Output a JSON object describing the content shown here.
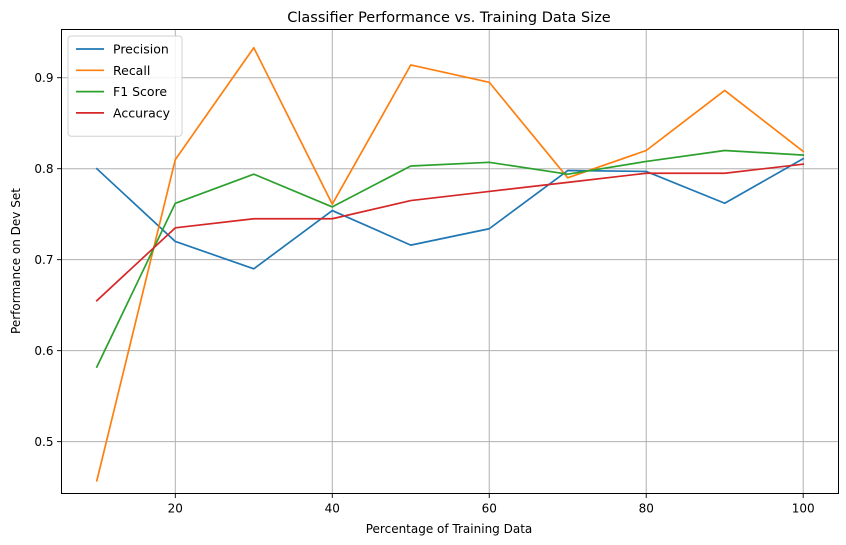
{
  "chart_data": {
    "type": "line",
    "title": "Classifier Performance vs. Training Data Size",
    "xlabel": "Percentage of Training Data",
    "ylabel": "Performance on Dev Set",
    "x": [
      10,
      20,
      30,
      40,
      50,
      60,
      70,
      80,
      90,
      100
    ],
    "xlim": [
      5.5,
      104.5
    ],
    "ylim": [
      0.443,
      0.953
    ],
    "xticks": [
      20,
      40,
      60,
      80,
      100
    ],
    "yticks": [
      0.5,
      0.6,
      0.7,
      0.8,
      0.9
    ],
    "xtick_labels": [
      "20",
      "40",
      "60",
      "80",
      "100"
    ],
    "ytick_labels": [
      "0.5",
      "0.6",
      "0.7",
      "0.8",
      "0.9"
    ],
    "grid": true,
    "legend_position": "top-left",
    "series": [
      {
        "name": "Precision",
        "color": "#1f77b4",
        "values": [
          0.8,
          0.72,
          0.69,
          0.754,
          0.716,
          0.734,
          0.798,
          0.797,
          0.762,
          0.811
        ]
      },
      {
        "name": "Recall",
        "color": "#ff7f0e",
        "values": [
          0.457,
          0.81,
          0.933,
          0.761,
          0.914,
          0.895,
          0.79,
          0.82,
          0.886,
          0.819
        ]
      },
      {
        "name": "F1 Score",
        "color": "#2ca02c",
        "values": [
          0.582,
          0.762,
          0.794,
          0.758,
          0.803,
          0.807,
          0.794,
          0.808,
          0.82,
          0.815
        ]
      },
      {
        "name": "Accuracy",
        "color": "#d62728",
        "values": [
          0.655,
          0.735,
          0.745,
          0.745,
          0.765,
          0.775,
          0.785,
          0.795,
          0.795,
          0.805
        ]
      }
    ]
  }
}
